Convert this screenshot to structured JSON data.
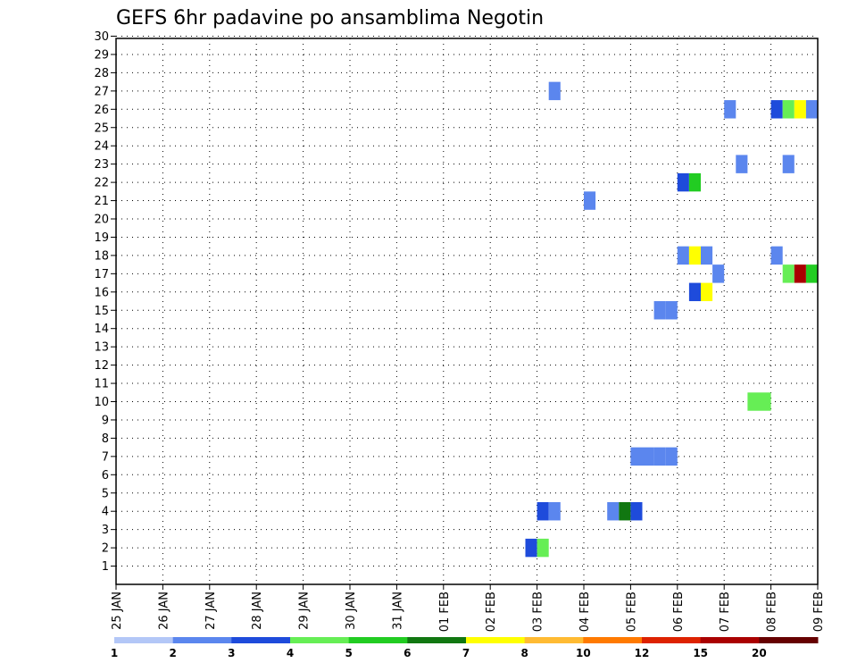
{
  "chart_data": {
    "type": "heatmap",
    "title": "GEFS 6hr padavine po ansamblima Negotin",
    "xlabel": "",
    "ylabel": "",
    "x_dates": [
      "25 JAN",
      "26 JAN",
      "27 JAN",
      "28 JAN",
      "29 JAN",
      "30 JAN",
      "31 JAN",
      "01 FEB",
      "02 FEB",
      "03 FEB",
      "04 FEB",
      "05 FEB",
      "06 FEB",
      "07 FEB",
      "08 FEB",
      "09 FEB"
    ],
    "y_members": [
      1,
      2,
      3,
      4,
      5,
      6,
      7,
      8,
      9,
      10,
      11,
      12,
      13,
      14,
      15,
      16,
      17,
      18,
      19,
      20,
      21,
      22,
      23,
      24,
      25,
      26,
      27,
      28,
      29,
      30
    ],
    "grid": true,
    "colorbar": {
      "placement": "bottom",
      "labels": [
        "1",
        "2",
        "3",
        "4",
        "5",
        "6",
        "7",
        "8",
        "10",
        "12",
        "15",
        "20"
      ],
      "colors": [
        "#b3c7f7",
        "#5b86ee",
        "#1e4bdb",
        "#66ee55",
        "#22cc22",
        "#117711",
        "#ffff00",
        "#ffbb33",
        "#ff7a00",
        "#dd2200",
        "#aa0000",
        "#660000"
      ]
    },
    "cells": [
      {
        "date": "02 FEB",
        "hour": 18,
        "member": 2,
        "value": 3
      },
      {
        "date": "03 FEB",
        "hour": 0,
        "member": 2,
        "value": 4
      },
      {
        "date": "03 FEB",
        "hour": 0,
        "member": 4,
        "value": 3
      },
      {
        "date": "03 FEB",
        "hour": 6,
        "member": 4,
        "value": 2
      },
      {
        "date": "03 FEB",
        "hour": 6,
        "member": 27,
        "value": 2
      },
      {
        "date": "04 FEB",
        "hour": 0,
        "member": 21,
        "value": 2
      },
      {
        "date": "04 FEB",
        "hour": 12,
        "member": 4,
        "value": 2
      },
      {
        "date": "04 FEB",
        "hour": 18,
        "member": 4,
        "value": 6
      },
      {
        "date": "05 FEB",
        "hour": 0,
        "member": 4,
        "value": 3
      },
      {
        "date": "05 FEB",
        "hour": 0,
        "member": 7,
        "value": 2
      },
      {
        "date": "05 FEB",
        "hour": 6,
        "member": 7,
        "value": 2
      },
      {
        "date": "05 FEB",
        "hour": 12,
        "member": 7,
        "value": 2
      },
      {
        "date": "05 FEB",
        "hour": 12,
        "member": 15,
        "value": 2
      },
      {
        "date": "05 FEB",
        "hour": 18,
        "member": 7,
        "value": 2
      },
      {
        "date": "05 FEB",
        "hour": 18,
        "member": 15,
        "value": 2
      },
      {
        "date": "06 FEB",
        "hour": 0,
        "member": 22,
        "value": 3
      },
      {
        "date": "06 FEB",
        "hour": 0,
        "member": 18,
        "value": 2
      },
      {
        "date": "06 FEB",
        "hour": 6,
        "member": 22,
        "value": 5
      },
      {
        "date": "06 FEB",
        "hour": 6,
        "member": 18,
        "value": 7
      },
      {
        "date": "06 FEB",
        "hour": 6,
        "member": 16,
        "value": 3
      },
      {
        "date": "06 FEB",
        "hour": 12,
        "member": 18,
        "value": 2
      },
      {
        "date": "06 FEB",
        "hour": 12,
        "member": 16,
        "value": 7
      },
      {
        "date": "06 FEB",
        "hour": 18,
        "member": 17,
        "value": 2
      },
      {
        "date": "07 FEB",
        "hour": 0,
        "member": 26,
        "value": 2
      },
      {
        "date": "07 FEB",
        "hour": 6,
        "member": 23,
        "value": 2
      },
      {
        "date": "07 FEB",
        "hour": 12,
        "member": 10,
        "value": 4
      },
      {
        "date": "07 FEB",
        "hour": 18,
        "member": 10,
        "value": 4
      },
      {
        "date": "08 FEB",
        "hour": 0,
        "member": 26,
        "value": 3
      },
      {
        "date": "08 FEB",
        "hour": 0,
        "member": 18,
        "value": 2
      },
      {
        "date": "08 FEB",
        "hour": 6,
        "member": 26,
        "value": 4
      },
      {
        "date": "08 FEB",
        "hour": 6,
        "member": 23,
        "value": 2
      },
      {
        "date": "08 FEB",
        "hour": 6,
        "member": 17,
        "value": 4
      },
      {
        "date": "08 FEB",
        "hour": 12,
        "member": 26,
        "value": 7
      },
      {
        "date": "08 FEB",
        "hour": 12,
        "member": 17,
        "value": 15
      },
      {
        "date": "08 FEB",
        "hour": 18,
        "member": 26,
        "value": 2
      },
      {
        "date": "08 FEB",
        "hour": 18,
        "member": 17,
        "value": 5
      }
    ]
  }
}
